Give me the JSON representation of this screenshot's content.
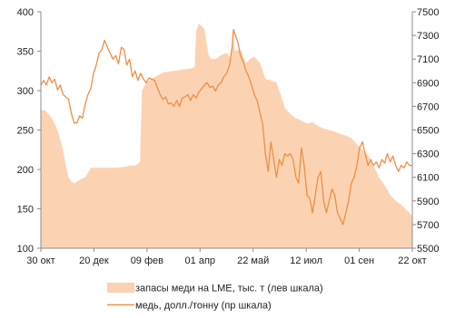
{
  "chart_data": {
    "type": "area",
    "x_categories": [
      "30 окт",
      "20 дек",
      "09 фев",
      "01 апр",
      "22 май",
      "12 июл",
      "01 сен",
      "22 окт"
    ],
    "y_left": {
      "ticks": [
        "100",
        "150",
        "200",
        "250",
        "300",
        "350",
        "400"
      ],
      "ylim": [
        100,
        400
      ]
    },
    "y_right": {
      "ticks": [
        "5500",
        "5700",
        "5900",
        "6100",
        "6300",
        "6500",
        "6700",
        "6900",
        "7100",
        "7300",
        "7500"
      ],
      "ylim": [
        5500,
        7500
      ]
    },
    "legend_position": "bottom",
    "series": [
      {
        "name": "запасы меди на LME, тыс. т (лев шкала)",
        "type": "area",
        "axis": "left",
        "color": "#fbd3b3",
        "points": [
          [
            0.0,
            275
          ],
          [
            1.5,
            275
          ],
          [
            4,
            265
          ],
          [
            6,
            250
          ],
          [
            8,
            225
          ],
          [
            9,
            205
          ],
          [
            10,
            190
          ],
          [
            11,
            185
          ],
          [
            12,
            182
          ],
          [
            14,
            187
          ],
          [
            16,
            190
          ],
          [
            18,
            202
          ],
          [
            22,
            202
          ],
          [
            26,
            202
          ],
          [
            30,
            203
          ],
          [
            32,
            205
          ],
          [
            34,
            205
          ],
          [
            35,
            207
          ],
          [
            35.8,
            210
          ],
          [
            36,
            245
          ],
          [
            36.5,
            300
          ],
          [
            38,
            310
          ],
          [
            40,
            315
          ],
          [
            44,
            323
          ],
          [
            48,
            325
          ],
          [
            52,
            327
          ],
          [
            54,
            328
          ],
          [
            55.5,
            330
          ],
          [
            56,
            375
          ],
          [
            57,
            385
          ],
          [
            58,
            382
          ],
          [
            59,
            378
          ],
          [
            60.5,
            345
          ],
          [
            61.5,
            340
          ],
          [
            63,
            340
          ],
          [
            65,
            345
          ],
          [
            67,
            348
          ],
          [
            68.8,
            340
          ],
          [
            69,
            375
          ],
          [
            70,
            350
          ],
          [
            72,
            352
          ],
          [
            74,
            335
          ],
          [
            75.5,
            340
          ],
          [
            77,
            343
          ],
          [
            79,
            335
          ],
          [
            81,
            315
          ],
          [
            83,
            313
          ],
          [
            85,
            310
          ],
          [
            86,
            300
          ],
          [
            87,
            290
          ],
          [
            88,
            278
          ],
          [
            90,
            270
          ],
          [
            92,
            265
          ],
          [
            94,
            262
          ],
          [
            96,
            258
          ],
          [
            98,
            260
          ],
          [
            100,
            255
          ],
          [
            102,
            252
          ],
          [
            104,
            250
          ],
          [
            106,
            248
          ],
          [
            108,
            245
          ],
          [
            110,
            243
          ],
          [
            112,
            240
          ],
          [
            114,
            232
          ],
          [
            116,
            225
          ],
          [
            118,
            218
          ],
          [
            120,
            205
          ],
          [
            122,
            190
          ],
          [
            124,
            180
          ],
          [
            126,
            168
          ],
          [
            128,
            160
          ],
          [
            130,
            155
          ],
          [
            132,
            148
          ],
          [
            133,
            145
          ],
          [
            134,
            140
          ]
        ]
      },
      {
        "name": "медь, долл./тонну (пр шкала)",
        "type": "line",
        "axis": "right",
        "color": "#ef8f45",
        "points": [
          [
            0.0,
            6880
          ],
          [
            1,
            6920
          ],
          [
            2,
            6880
          ],
          [
            3,
            6950
          ],
          [
            4,
            6900
          ],
          [
            5,
            6930
          ],
          [
            6,
            6840
          ],
          [
            7,
            6880
          ],
          [
            8,
            6800
          ],
          [
            9,
            6780
          ],
          [
            10,
            6760
          ],
          [
            11,
            6640
          ],
          [
            12,
            6560
          ],
          [
            13,
            6560
          ],
          [
            14,
            6620
          ],
          [
            15,
            6600
          ],
          [
            16,
            6720
          ],
          [
            17,
            6800
          ],
          [
            18,
            6850
          ],
          [
            19,
            6980
          ],
          [
            20,
            7050
          ],
          [
            21,
            7150
          ],
          [
            22,
            7180
          ],
          [
            23,
            7260
          ],
          [
            24,
            7200
          ],
          [
            25,
            7150
          ],
          [
            26,
            7100
          ],
          [
            27,
            7130
          ],
          [
            28,
            7060
          ],
          [
            29,
            7200
          ],
          [
            30,
            7180
          ],
          [
            31,
            7050
          ],
          [
            32,
            7100
          ],
          [
            33,
            6950
          ],
          [
            34,
            7000
          ],
          [
            35,
            6920
          ],
          [
            36,
            6980
          ],
          [
            37,
            6930
          ],
          [
            38,
            6900
          ],
          [
            39,
            6940
          ],
          [
            40,
            6930
          ],
          [
            41,
            6920
          ],
          [
            42,
            6860
          ],
          [
            43,
            6800
          ],
          [
            44,
            6760
          ],
          [
            45,
            6780
          ],
          [
            46,
            6720
          ],
          [
            47,
            6730
          ],
          [
            48,
            6700
          ],
          [
            49,
            6750
          ],
          [
            50,
            6700
          ],
          [
            51,
            6770
          ],
          [
            52,
            6780
          ],
          [
            53,
            6800
          ],
          [
            54,
            6750
          ],
          [
            55,
            6800
          ],
          [
            56,
            6770
          ],
          [
            57,
            6820
          ],
          [
            58,
            6850
          ],
          [
            59,
            6880
          ],
          [
            60,
            6900
          ],
          [
            61,
            6860
          ],
          [
            62,
            6870
          ],
          [
            63,
            6830
          ],
          [
            64,
            6880
          ],
          [
            65,
            6900
          ],
          [
            66,
            6950
          ],
          [
            67,
            6980
          ],
          [
            68,
            7040
          ],
          [
            69,
            7200
          ],
          [
            69.5,
            7350
          ],
          [
            70,
            7310
          ],
          [
            71,
            7250
          ],
          [
            72,
            7130
          ],
          [
            73,
            7080
          ],
          [
            74,
            7000
          ],
          [
            75,
            6950
          ],
          [
            76,
            6880
          ],
          [
            77,
            6800
          ],
          [
            78,
            6750
          ],
          [
            79,
            6650
          ],
          [
            80,
            6550
          ],
          [
            81,
            6300
          ],
          [
            82,
            6150
          ],
          [
            83,
            6400
          ],
          [
            84,
            6250
          ],
          [
            85,
            6100
          ],
          [
            86,
            6250
          ],
          [
            87,
            6200
          ],
          [
            88,
            6300
          ],
          [
            89,
            6280
          ],
          [
            90,
            6300
          ],
          [
            91,
            6250
          ],
          [
            92,
            6100
          ],
          [
            93,
            6050
          ],
          [
            94,
            6350
          ],
          [
            95,
            6200
          ],
          [
            96,
            5950
          ],
          [
            97,
            5920
          ],
          [
            98,
            5800
          ],
          [
            99,
            5950
          ],
          [
            100,
            6100
          ],
          [
            101,
            6150
          ],
          [
            102,
            5900
          ],
          [
            103,
            5800
          ],
          [
            104,
            5900
          ],
          [
            105,
            6000
          ],
          [
            106,
            5950
          ],
          [
            107,
            5800
          ],
          [
            108,
            5750
          ],
          [
            109,
            5700
          ],
          [
            110,
            5800
          ],
          [
            111,
            5900
          ],
          [
            112,
            6050
          ],
          [
            113,
            6100
          ],
          [
            114,
            6200
          ],
          [
            115,
            6350
          ],
          [
            116,
            6400
          ],
          [
            117,
            6300
          ],
          [
            118,
            6200
          ],
          [
            119,
            6250
          ],
          [
            120,
            6200
          ],
          [
            121,
            6230
          ],
          [
            122,
            6180
          ],
          [
            123,
            6250
          ],
          [
            124,
            6220
          ],
          [
            125,
            6300
          ],
          [
            126,
            6230
          ],
          [
            127,
            6280
          ],
          [
            128,
            6200
          ],
          [
            129,
            6150
          ],
          [
            130,
            6200
          ],
          [
            131,
            6180
          ],
          [
            132,
            6230
          ],
          [
            133,
            6200
          ],
          [
            134,
            6200
          ]
        ]
      }
    ],
    "x_max": 134
  }
}
